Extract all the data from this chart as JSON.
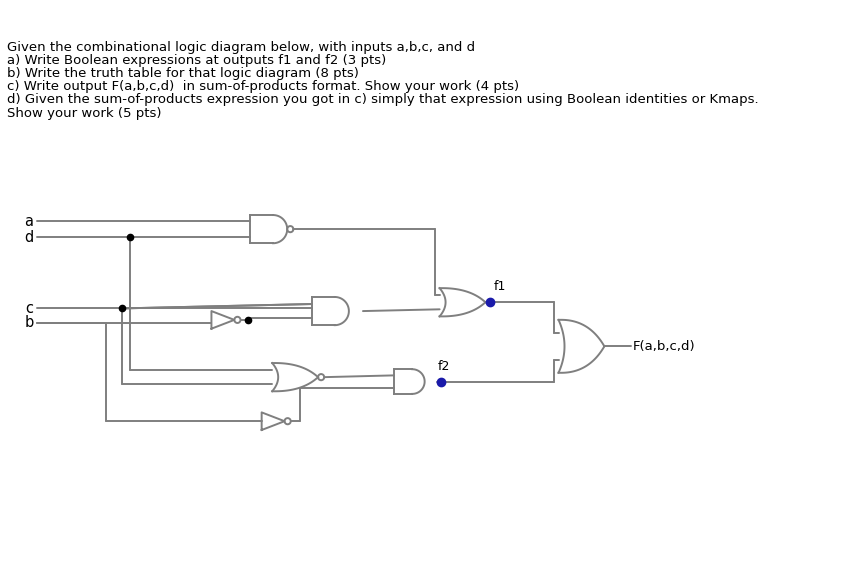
{
  "title_lines": [
    "Given the combinational logic diagram below, with inputs a,b,c, and d",
    "a) Write Boolean expressions at outputs f1 and f2 (3 pts)",
    "b) Write the truth table for that logic diagram (8 pts)",
    "c) Write output F(a,b,c,d)  in sum-of-products format. Show your work (4 pts)",
    "d) Given the sum-of-products expression you got in c) simply that expression using Boolean identities or Kmaps.",
    "Show your work (5 pts)"
  ],
  "bg_color": "#ffffff",
  "gate_color": "#7f7f7f",
  "wire_color": "#7f7f7f",
  "text_color": "#000000",
  "dot_color": "#1a1aaa",
  "junction_color": "#000000",
  "font_size": 9.5
}
